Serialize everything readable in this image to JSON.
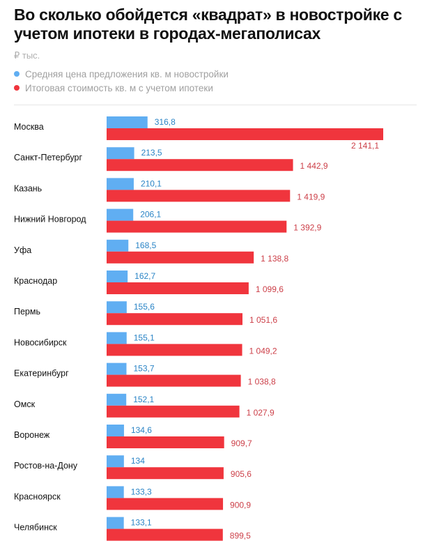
{
  "colors": {
    "blue": "#60aef2",
    "red": "#f0353d",
    "blue_label": "#2a84c6",
    "red_label": "#cc3f48"
  },
  "chart_data": {
    "type": "bar",
    "orientation": "horizontal",
    "title": "Во сколько обойдется «квадрат» в новостройке с учетом ипотеки в городах-мегаполисах",
    "unit": "₽ тыс.",
    "legend_position": "top-left",
    "grid": false,
    "xlim": [
      0,
      2150
    ],
    "categories": [
      "Москва",
      "Санкт-Петербург",
      "Казань",
      "Нижний Новгород",
      "Уфа",
      "Краснодар",
      "Пермь",
      "Новосибирск",
      "Екатеринбург",
      "Омск",
      "Воронеж",
      "Ростов-на-Дону",
      "Красноярск",
      "Челябинск"
    ],
    "series": [
      {
        "name": "Средняя цена предложения кв. м новостройки",
        "color": "#60aef2",
        "values": [
          316.8,
          213.5,
          210.1,
          206.1,
          168.5,
          162.7,
          155.6,
          155.1,
          153.7,
          152.1,
          134.6,
          134,
          133.3,
          133.1
        ],
        "labels": [
          "316,8",
          "213,5",
          "210,1",
          "206,1",
          "168,5",
          "162,7",
          "155,6",
          "155,1",
          "153,7",
          "152,1",
          "134,6",
          "134",
          "133,3",
          "133,1"
        ]
      },
      {
        "name": "Итоговая стоимость кв. м с учетом ипотеки",
        "color": "#f0353d",
        "values": [
          2141.1,
          1442.9,
          1419.9,
          1392.9,
          1138.8,
          1099.6,
          1051.6,
          1049.2,
          1038.8,
          1027.9,
          909.7,
          905.6,
          900.9,
          899.5
        ],
        "labels": [
          "2 141,1",
          "1 442,9",
          "1 419,9",
          "1 392,9",
          "1 138,8",
          "1 099,6",
          "1 051,6",
          "1 049,2",
          "1 038,8",
          "1 027,9",
          "909,7",
          "905,6",
          "900,9",
          "899,5"
        ]
      }
    ]
  }
}
